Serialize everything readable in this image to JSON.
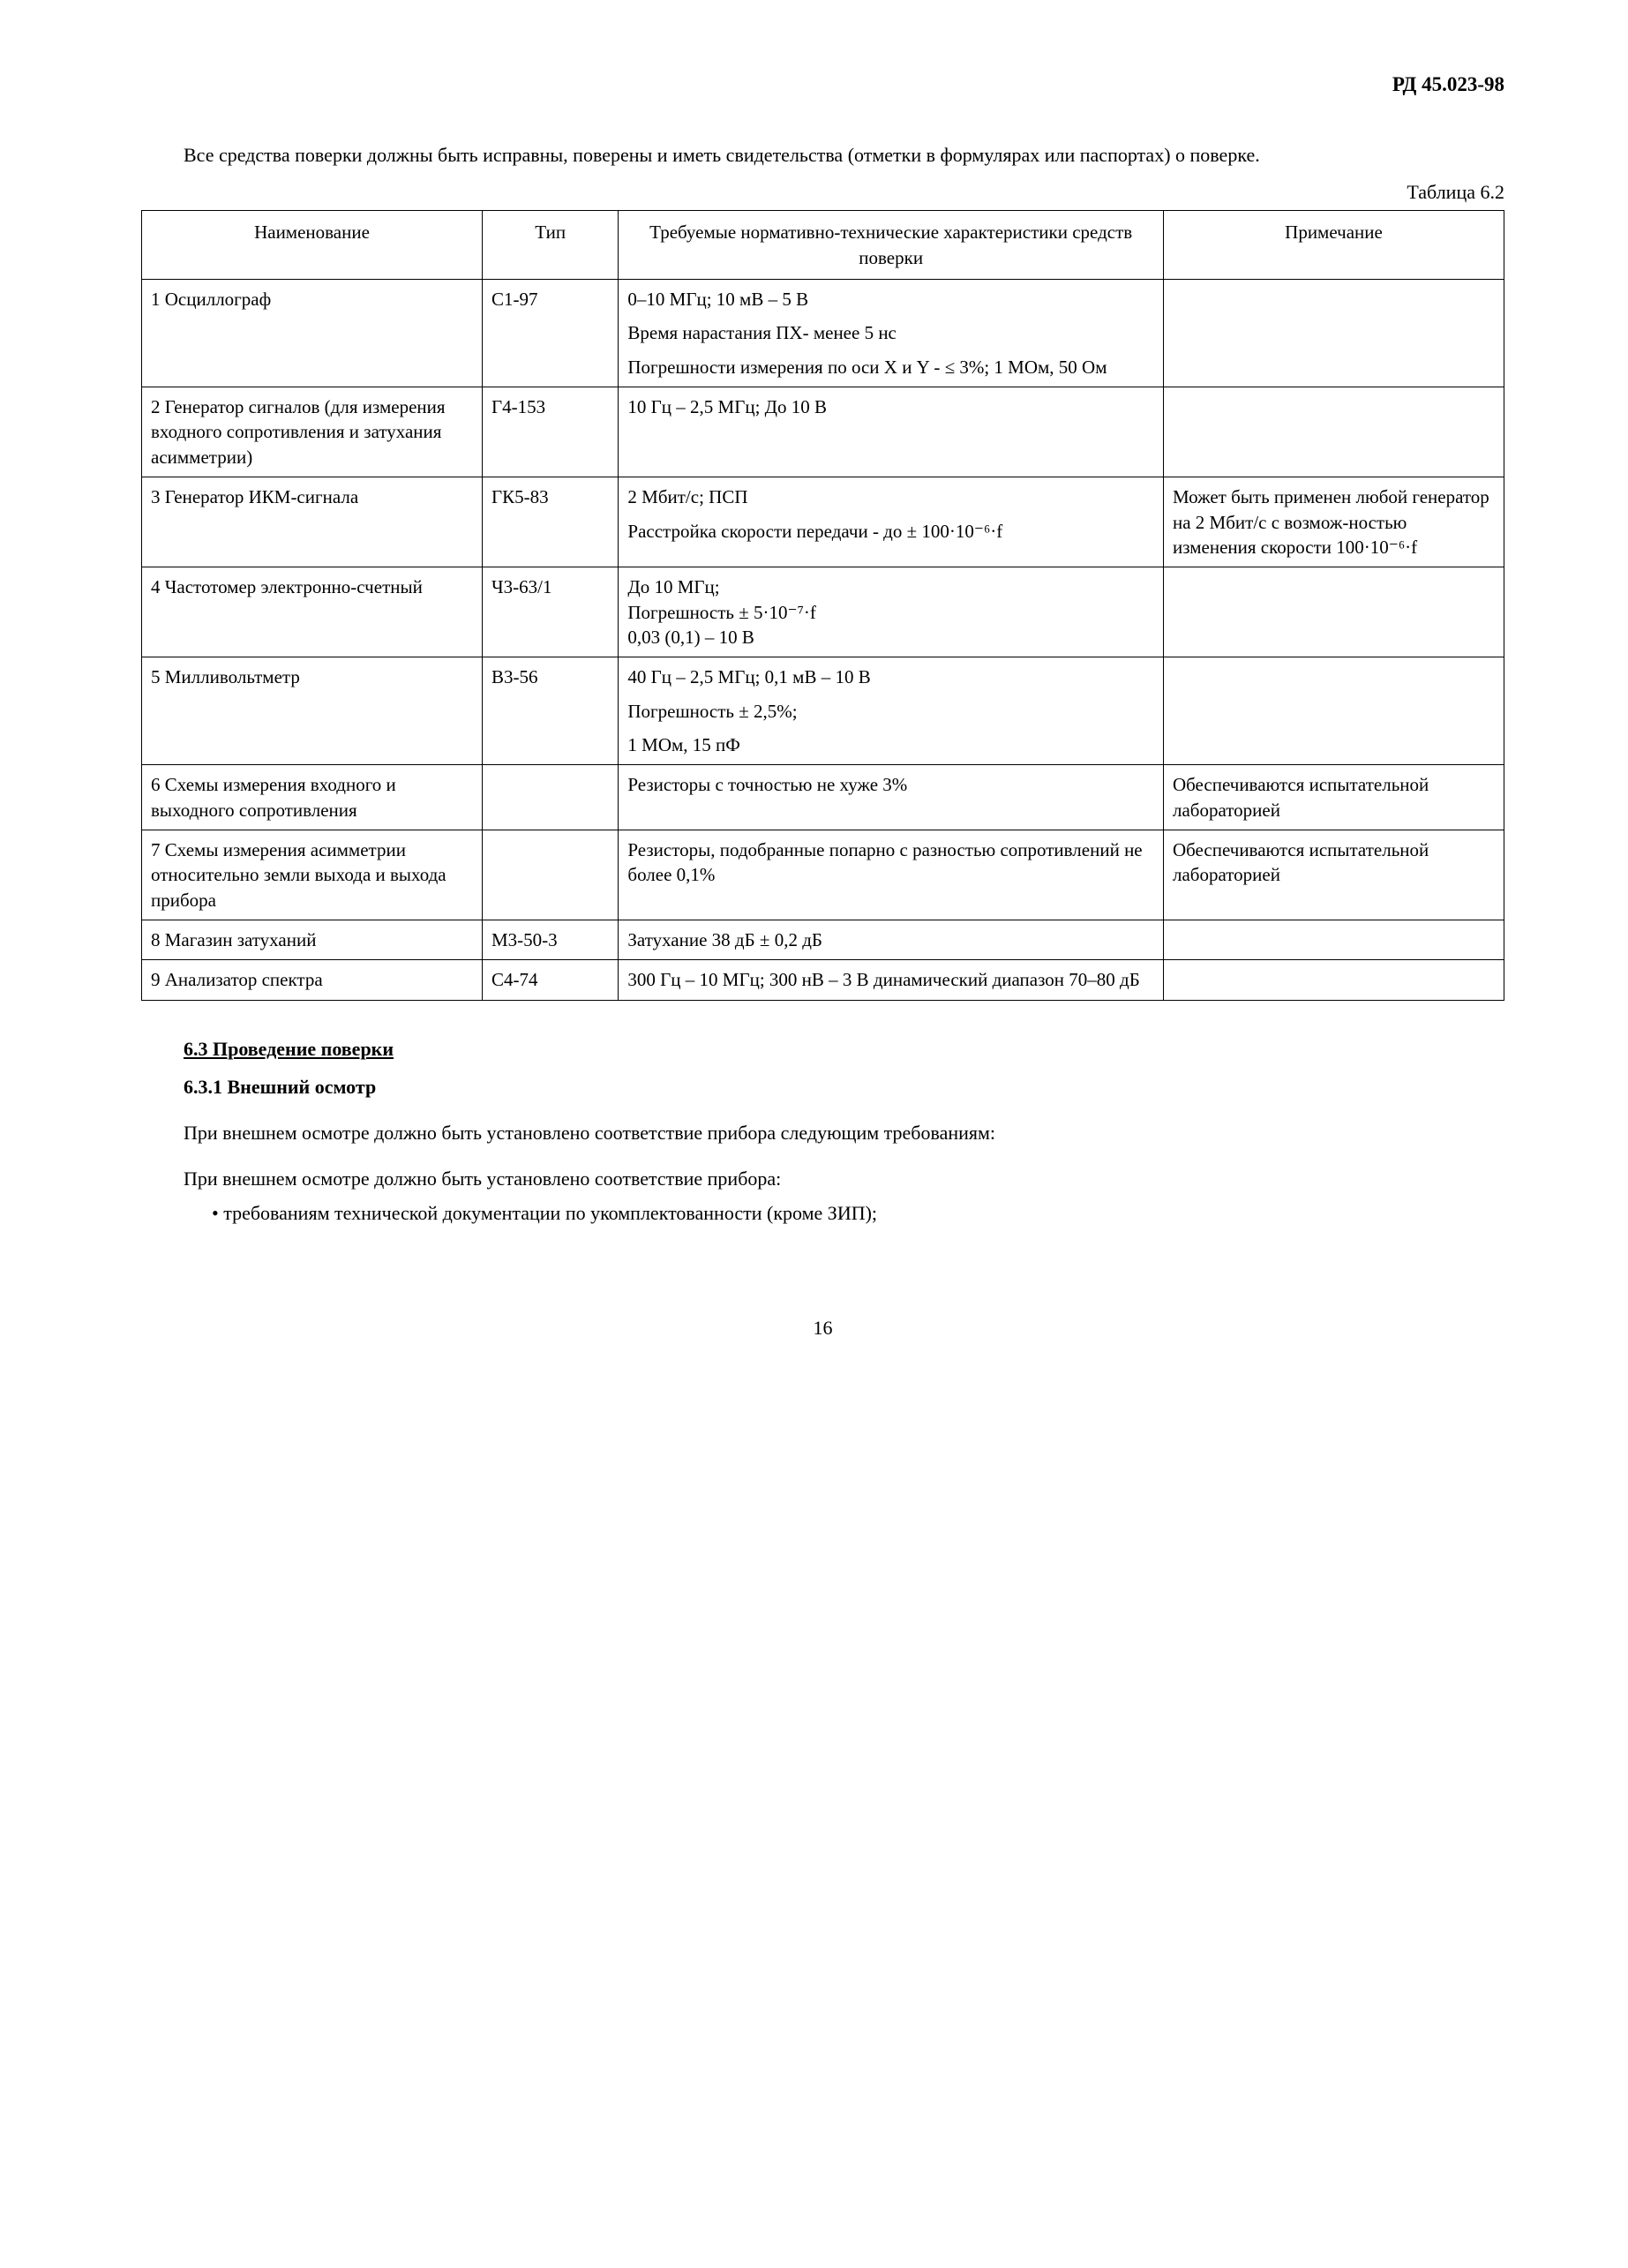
{
  "doc_header": "РД 45.023-98",
  "intro_para": "Все средства поверки должны быть исправны, поверены и иметь свидетельства (отметки в формулярах или паспортах) о поверке.",
  "table_caption": "Таблица 6.2",
  "table": {
    "headers": {
      "name": "Наименование",
      "type": "Тип",
      "spec": "Требуемые нормативно-технические характеристики средств поверки",
      "note": "Примечание"
    },
    "rows": [
      {
        "name": "1 Осциллограф",
        "type": "С1-97",
        "specs": [
          "0–10 МГц; 10 мВ – 5 В",
          "Время нарастания ПХ- менее 5 нс",
          "Погрешности измерения по оси X  и Y - ≤ 3%; 1 МОм, 50 Ом"
        ],
        "note": ""
      },
      {
        "name": "2 Генератор сигналов (для измерения входного сопротивления и затухания асимметрии)",
        "type": "Г4-153",
        "specs": [
          "10 Гц – 2,5 МГц; До 10 В"
        ],
        "note": ""
      },
      {
        "name": "3 Генератор ИКМ-сигнала",
        "type": "ГК5-83",
        "specs": [
          "2 Мбит/с; ПСП",
          "Расстройка скорости передачи - до ± 100·10⁻⁶·f"
        ],
        "note": "Может быть применен любой генератор на 2 Мбит/с с возмож-ностью изменения скорости 100·10⁻⁶·f"
      },
      {
        "name": "4 Частотомер электронно-счетный",
        "type": "Ч3-63/1",
        "specs": [
          "До 10 МГц;\nПогрешность ± 5·10⁻⁷·f\n0,03 (0,1) – 10 В"
        ],
        "note": ""
      },
      {
        "name": "5 Милливольтметр",
        "type": "В3-56",
        "specs": [
          "40 Гц – 2,5 МГц; 0,1 мВ – 10 В",
          "Погрешность ± 2,5%;",
          "1 МОм, 15 пФ"
        ],
        "note": ""
      },
      {
        "name": "6 Схемы измерения входного и выходного сопротивления",
        "type": "",
        "specs": [
          "Резисторы с точностью не хуже 3%"
        ],
        "note": "Обеспечиваются испытательной лабораторией"
      },
      {
        "name": "7 Схемы измерения асимметрии относительно земли выхода и выхода прибора",
        "type": "",
        "specs": [
          "Резисторы, подобранные попарно с разностью сопротивлений не более 0,1%"
        ],
        "note": "Обеспечиваются испытательной лабораторией"
      },
      {
        "name": "8 Магазин затуханий",
        "type": "М3-50-3",
        "specs": [
          "Затухание 38 дБ ± 0,2 дБ"
        ],
        "note": ""
      },
      {
        "name": "9 Анализатор спектра",
        "type": "С4-74",
        "specs": [
          "300  Гц  –  10  МГц;  300  нВ  –  3  В динамический диапазон 70–80 дБ"
        ],
        "note": ""
      }
    ]
  },
  "section_heading": "6.3 Проведение поверки",
  "sub_heading": "6.3.1 Внешний осмотр",
  "body_para1": "При внешнем осмотре должно быть установлено соответствие прибора следующим требованиям:",
  "body_para2": "При внешнем осмотре должно быть установлено соответствие прибора:",
  "bullet1": "требованиям технической документации по укомплектованности (кроме ЗИП);",
  "page_number": "16"
}
